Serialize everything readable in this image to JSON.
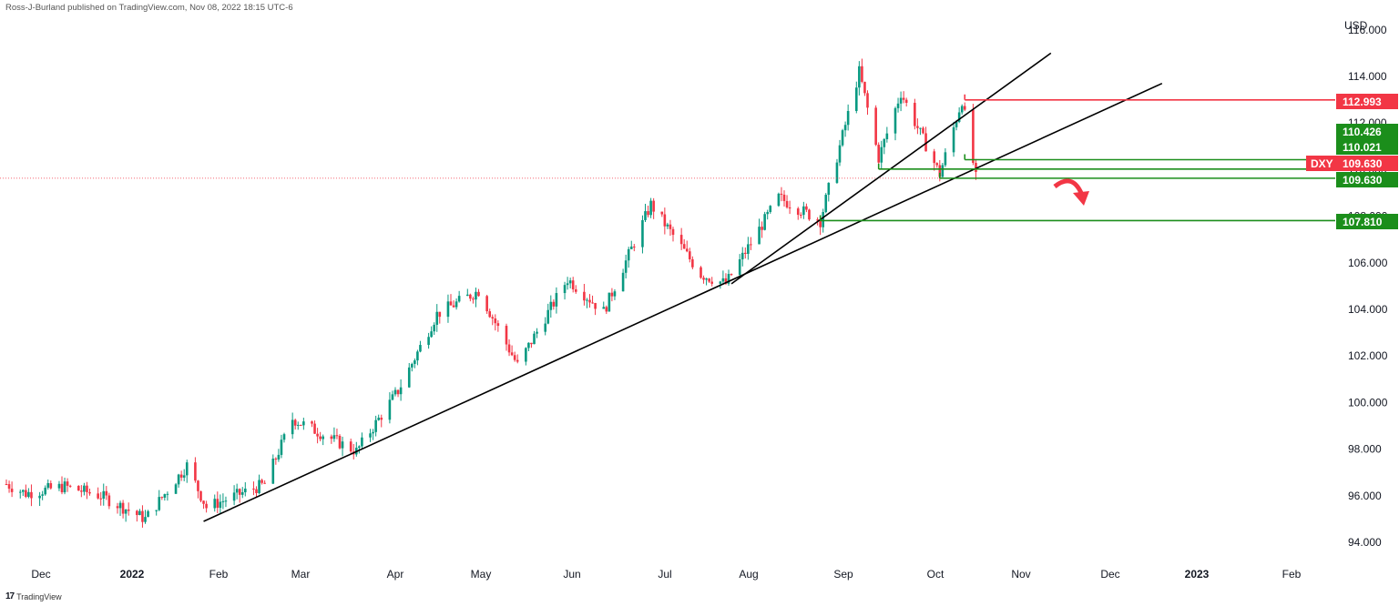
{
  "header": {
    "attribution": "Ross-J-Burland published on TradingView.com, Nov 08, 2022 18:15 UTC-6"
  },
  "footer": {
    "logo_text": "17",
    "brand": "TradingView"
  },
  "colors": {
    "up": "#26a69a",
    "down": "#ef5350",
    "up_candle": "#089981",
    "down_candle": "#f23645",
    "resistance": "#f23645",
    "support": "#1b8e1b",
    "trend": "#000000"
  },
  "chart_data": {
    "type": "candlestick",
    "symbol": "DXY",
    "currency_label": "USD",
    "x_axis_labels": [
      "Dec",
      "2022",
      "Feb",
      "Mar",
      "Apr",
      "May",
      "Jun",
      "Jul",
      "Aug",
      "Sep",
      "Oct",
      "Nov",
      "Dec",
      "2023",
      "Feb"
    ],
    "y_ticks": [
      94.0,
      96.0,
      98.0,
      100.0,
      102.0,
      104.0,
      106.0,
      114.0
    ],
    "ylim": [
      93.5,
      115.5
    ],
    "last_price": 109.63,
    "grid": false,
    "ohlc_points": [
      {
        "date": "2021-11-24",
        "value": 96.5
      },
      {
        "date": "2021-12-01",
        "value": 96.1
      },
      {
        "date": "2021-12-15",
        "value": 96.4
      },
      {
        "date": "2021-12-28",
        "value": 96.0
      },
      {
        "date": "2022-01-13",
        "value": 95.0
      },
      {
        "date": "2022-01-28",
        "value": 97.3
      },
      {
        "date": "2022-02-04",
        "value": 95.5
      },
      {
        "date": "2022-02-25",
        "value": 96.5
      },
      {
        "date": "2022-03-07",
        "value": 99.3
      },
      {
        "date": "2022-03-30",
        "value": 97.9
      },
      {
        "date": "2022-04-14",
        "value": 100.5
      },
      {
        "date": "2022-04-28",
        "value": 103.8
      },
      {
        "date": "2022-05-13",
        "value": 104.8
      },
      {
        "date": "2022-05-27",
        "value": 101.6
      },
      {
        "date": "2022-06-14",
        "value": 105.3
      },
      {
        "date": "2022-06-27",
        "value": 103.9
      },
      {
        "date": "2022-07-14",
        "value": 108.5
      },
      {
        "date": "2022-08-01",
        "value": 105.5
      },
      {
        "date": "2022-08-10",
        "value": 105.1
      },
      {
        "date": "2022-08-29",
        "value": 108.8
      },
      {
        "date": "2022-09-13",
        "value": 107.8
      },
      {
        "date": "2022-09-27",
        "value": 114.2
      },
      {
        "date": "2022-10-04",
        "value": 110.5
      },
      {
        "date": "2022-10-12",
        "value": 113.3
      },
      {
        "date": "2022-10-26",
        "value": 109.8
      },
      {
        "date": "2022-11-03",
        "value": 112.99
      },
      {
        "date": "2022-11-08",
        "value": 109.63
      }
    ],
    "horizontal_levels": [
      {
        "label": "112.993",
        "value": 112.993,
        "color": "resistance"
      },
      {
        "label": "110.426",
        "value": 110.426,
        "color": "support"
      },
      {
        "label": "110.021",
        "value": 110.021,
        "color": "support"
      },
      {
        "label": "109.630",
        "value": 109.63,
        "color": "support"
      },
      {
        "label": "107.810",
        "value": 107.81,
        "color": "support"
      }
    ],
    "partially_hidden_ticks": [
      "112.000",
      "110.000",
      "108.000",
      "116.000"
    ],
    "trendlines": [
      {
        "from": {
          "date": "2022-02-03",
          "value": 94.9
        },
        "to": {
          "date": "2023-01-14",
          "value": 113.7
        }
      },
      {
        "from": {
          "date": "2022-08-12",
          "value": 105.1
        },
        "to": {
          "date": "2022-12-05",
          "value": 115.0
        }
      }
    ],
    "annotation": "curved red arrow pointing down"
  }
}
